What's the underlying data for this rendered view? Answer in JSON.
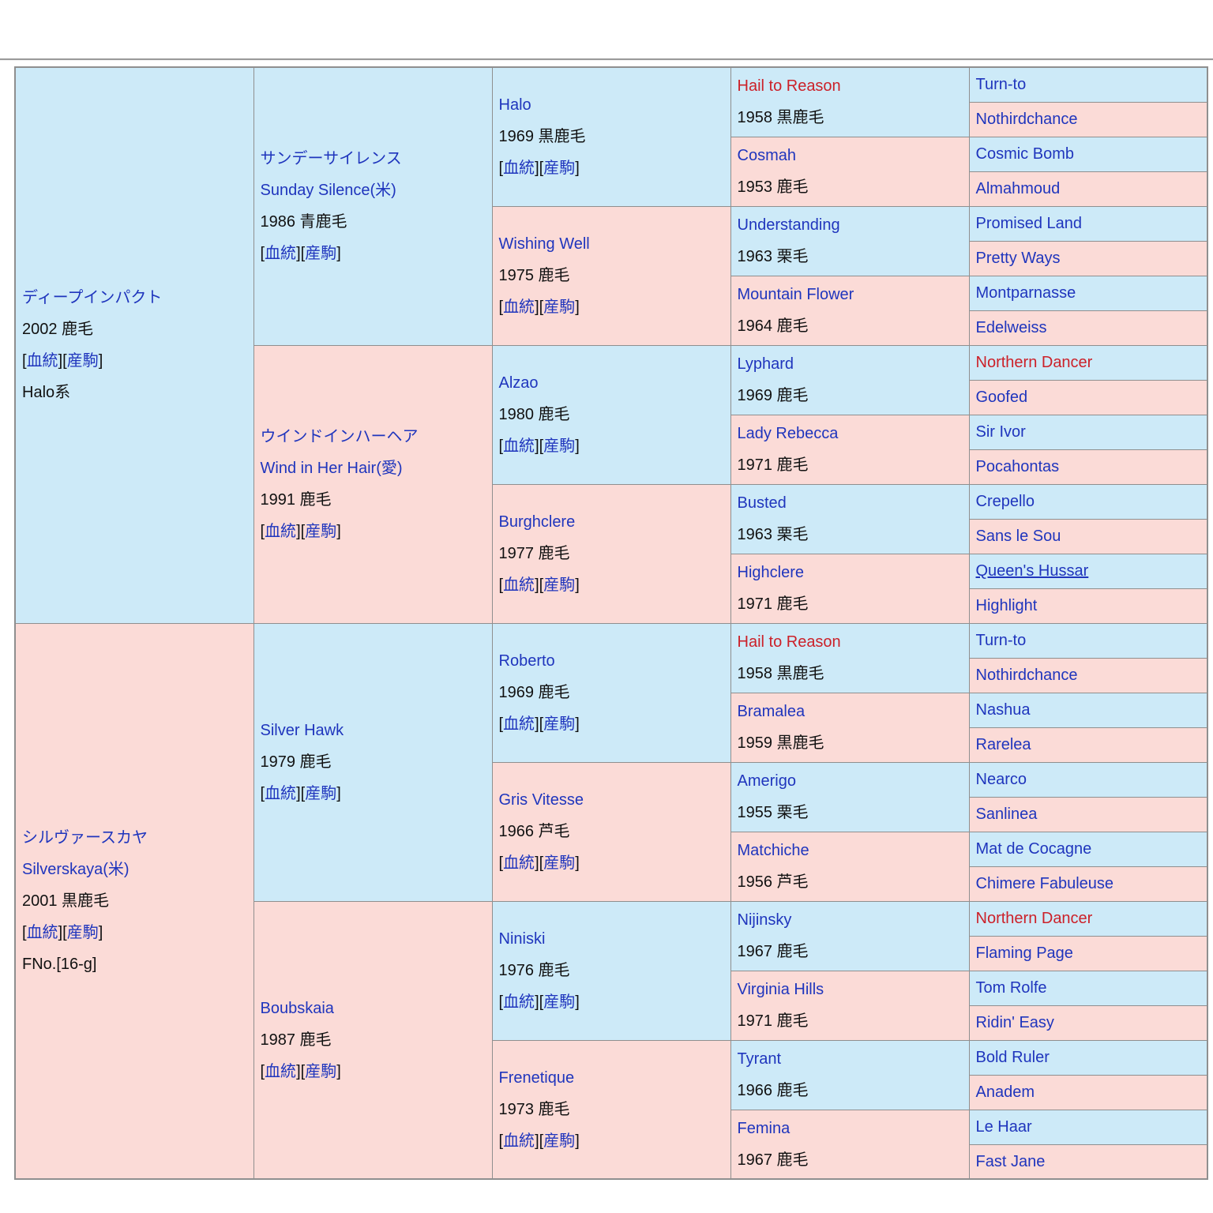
{
  "colors": {
    "male_cell_bg": "#cdeaf8",
    "female_cell_bg": "#fbdbd7",
    "link_blue": "#1f35bd",
    "highlight_red": "#cc2129",
    "plain_text": "#111111",
    "border_gray": "#8f8f8f",
    "page_bg": "#ffffff"
  },
  "labels": {
    "blood": "血統",
    "offspring": "産駒",
    "bracket_open": "[",
    "bracket_close": "]",
    "bracket_close_open": "]["
  },
  "generation1": [
    {
      "kana": "ディープインパクト",
      "year_coat": "2002 鹿毛",
      "links": true,
      "extra": "Halo系"
    },
    {
      "kana": "シルヴァースカヤ",
      "name": "Silverskaya(米)",
      "year_coat": "2001 黒鹿毛",
      "links": true,
      "extra": "FNo.[16-g]"
    }
  ],
  "generation2": [
    {
      "kana": "サンデーサイレンス",
      "name": "Sunday Silence(米)",
      "year_coat": "1986 青鹿毛",
      "links": true
    },
    {
      "kana": "ウインドインハーヘア",
      "name": "Wind in Her Hair(愛)",
      "year_coat": "1991 鹿毛",
      "links": true
    },
    {
      "name": "Silver Hawk",
      "year_coat": "1979 鹿毛",
      "links": true
    },
    {
      "name": "Boubskaia",
      "year_coat": "1987 鹿毛",
      "links": true
    }
  ],
  "generation3": [
    {
      "name": "Halo",
      "year_coat": "1969 黒鹿毛",
      "links": true
    },
    {
      "name": "Wishing Well",
      "year_coat": "1975 鹿毛",
      "links": true
    },
    {
      "name": "Alzao",
      "year_coat": "1980 鹿毛",
      "links": true
    },
    {
      "name": "Burghclere",
      "year_coat": "1977 鹿毛",
      "links": true
    },
    {
      "name": "Roberto",
      "year_coat": "1969 鹿毛",
      "links": true
    },
    {
      "name": "Gris Vitesse",
      "year_coat": "1966 芦毛",
      "links": true
    },
    {
      "name": "Niniski",
      "year_coat": "1976 鹿毛",
      "links": true
    },
    {
      "name": "Frenetique",
      "year_coat": "1973 鹿毛",
      "links": true
    }
  ],
  "generation4": [
    {
      "name": "Hail to Reason",
      "year_coat": "1958 黒鹿毛",
      "red": true
    },
    {
      "name": "Cosmah",
      "year_coat": "1953 鹿毛"
    },
    {
      "name": "Understanding",
      "year_coat": "1963 栗毛"
    },
    {
      "name": "Mountain Flower",
      "year_coat": "1964 鹿毛"
    },
    {
      "name": "Lyphard",
      "year_coat": "1969 鹿毛"
    },
    {
      "name": "Lady Rebecca",
      "year_coat": "1971 鹿毛"
    },
    {
      "name": "Busted",
      "year_coat": "1963 栗毛"
    },
    {
      "name": "Highclere",
      "year_coat": "1971 鹿毛"
    },
    {
      "name": "Hail to Reason",
      "year_coat": "1958 黒鹿毛",
      "red": true
    },
    {
      "name": "Bramalea",
      "year_coat": "1959 黒鹿毛"
    },
    {
      "name": "Amerigo",
      "year_coat": "1955 栗毛"
    },
    {
      "name": "Matchiche",
      "year_coat": "1956 芦毛"
    },
    {
      "name": "Nijinsky",
      "year_coat": "1967 鹿毛"
    },
    {
      "name": "Virginia Hills",
      "year_coat": "1971 鹿毛"
    },
    {
      "name": "Tyrant",
      "year_coat": "1966 鹿毛"
    },
    {
      "name": "Femina",
      "year_coat": "1967 鹿毛"
    }
  ],
  "generation5": [
    {
      "name": "Turn-to"
    },
    {
      "name": "Nothirdchance"
    },
    {
      "name": "Cosmic Bomb"
    },
    {
      "name": "Almahmoud"
    },
    {
      "name": "Promised Land"
    },
    {
      "name": "Pretty Ways"
    },
    {
      "name": "Montparnasse"
    },
    {
      "name": "Edelweiss"
    },
    {
      "name": "Northern Dancer",
      "red": true
    },
    {
      "name": "Goofed"
    },
    {
      "name": "Sir Ivor"
    },
    {
      "name": "Pocahontas"
    },
    {
      "name": "Crepello"
    },
    {
      "name": "Sans le Sou"
    },
    {
      "name": "Queen's Hussar",
      "underline": true
    },
    {
      "name": "Highlight"
    },
    {
      "name": "Turn-to"
    },
    {
      "name": "Nothirdchance"
    },
    {
      "name": "Nashua"
    },
    {
      "name": "Rarelea"
    },
    {
      "name": "Nearco"
    },
    {
      "name": "Sanlinea"
    },
    {
      "name": "Mat de Cocagne"
    },
    {
      "name": "Chimere Fabuleuse"
    },
    {
      "name": "Northern Dancer",
      "red": true
    },
    {
      "name": "Flaming Page"
    },
    {
      "name": "Tom Rolfe"
    },
    {
      "name": "Ridin' Easy"
    },
    {
      "name": "Bold Ruler"
    },
    {
      "name": "Anadem"
    },
    {
      "name": "Le Haar"
    },
    {
      "name": "Fast Jane"
    }
  ]
}
